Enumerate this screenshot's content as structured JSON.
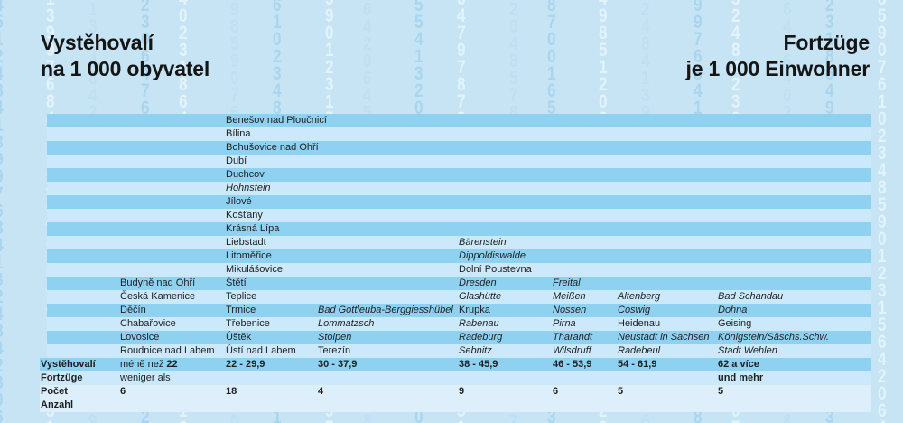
{
  "titles": {
    "czech_line1": "Vystěhovalí",
    "czech_line2": "na 1 000 obyvatel",
    "german_line1": "Fortzüge",
    "german_line2": "je 1 000 Einwohner"
  },
  "colors": {
    "background": "#c7e4f4",
    "band_dark": "#8ed1f1",
    "band_light": "#cbe9fa",
    "band_pale": "#dceffb",
    "text": "#1f1f1f",
    "digit_dark": "#a9d6ee",
    "digit_light": "#e2f3fc",
    "digit_mid": "#bfe0f2"
  },
  "background": {
    "digits": "45124841399768413248423064764023186498590761023485901231564206455413206479787320485787001654985120655476910234859012315642"
  },
  "table": {
    "rows": [
      {
        "shade": "dark",
        "cells": [
          {
            "col": 3,
            "text": "Benešov nad Ploučnicí"
          }
        ]
      },
      {
        "shade": "light",
        "cells": [
          {
            "col": 3,
            "text": "Bílina"
          }
        ]
      },
      {
        "shade": "dark",
        "cells": [
          {
            "col": 3,
            "text": "Bohušovice nad Ohří"
          }
        ]
      },
      {
        "shade": "light",
        "cells": [
          {
            "col": 3,
            "text": "Dubí"
          }
        ]
      },
      {
        "shade": "dark",
        "cells": [
          {
            "col": 3,
            "text": "Duchcov"
          }
        ]
      },
      {
        "shade": "light",
        "cells": [
          {
            "col": 3,
            "text": "Hohnstein",
            "italic": true
          }
        ]
      },
      {
        "shade": "dark",
        "cells": [
          {
            "col": 3,
            "text": "Jílové"
          }
        ]
      },
      {
        "shade": "light",
        "cells": [
          {
            "col": 3,
            "text": "Košťany"
          }
        ]
      },
      {
        "shade": "dark",
        "cells": [
          {
            "col": 3,
            "text": "Krásná Lípa"
          }
        ]
      },
      {
        "shade": "light",
        "cells": [
          {
            "col": 3,
            "text": "Liebstadt"
          },
          {
            "col": 5,
            "text": "Bärenstein",
            "italic": true
          }
        ]
      },
      {
        "shade": "dark",
        "cells": [
          {
            "col": 3,
            "text": "Litoměřice"
          },
          {
            "col": 5,
            "text": "Dippoldiswalde",
            "italic": true
          }
        ]
      },
      {
        "shade": "light",
        "cells": [
          {
            "col": 3,
            "text": "Mikulášovice"
          },
          {
            "col": 5,
            "text": "Dolní Poustevna"
          }
        ]
      },
      {
        "shade": "dark",
        "cells": [
          {
            "col": 2,
            "text": "Budyně nad Ohří"
          },
          {
            "col": 3,
            "text": "Štětí"
          },
          {
            "col": 5,
            "text": "Dresden",
            "italic": true
          },
          {
            "col": 6,
            "text": "Freital",
            "italic": true
          }
        ]
      },
      {
        "shade": "light",
        "cells": [
          {
            "col": 2,
            "text": "Česká Kamenice"
          },
          {
            "col": 3,
            "text": "Teplice"
          },
          {
            "col": 5,
            "text": "Glashütte",
            "italic": true
          },
          {
            "col": 6,
            "text": "Meißen",
            "italic": true
          },
          {
            "col": 7,
            "text": "Altenberg",
            "italic": true
          },
          {
            "col": 8,
            "text": "Bad Schandau",
            "italic": true
          }
        ]
      },
      {
        "shade": "dark",
        "cells": [
          {
            "col": 2,
            "text": "Děčín"
          },
          {
            "col": 3,
            "text": "Trmice"
          },
          {
            "col": 4,
            "text": "Bad Gottleuba-Berggiesshübel",
            "italic": true
          },
          {
            "col": 5,
            "text": "Krupka"
          },
          {
            "col": 6,
            "text": "Nossen",
            "italic": true
          },
          {
            "col": 7,
            "text": "Coswig",
            "italic": true
          },
          {
            "col": 8,
            "text": "Dohna",
            "italic": true
          }
        ]
      },
      {
        "shade": "light",
        "cells": [
          {
            "col": 2,
            "text": "Chabařovice"
          },
          {
            "col": 3,
            "text": "Třebenice"
          },
          {
            "col": 4,
            "text": "Lommatzsch",
            "italic": true
          },
          {
            "col": 5,
            "text": "Rabenau",
            "italic": true
          },
          {
            "col": 6,
            "text": "Pirna",
            "italic": true
          },
          {
            "col": 7,
            "text": "Heidenau"
          },
          {
            "col": 8,
            "text": "Geising"
          }
        ]
      },
      {
        "shade": "dark",
        "cells": [
          {
            "col": 2,
            "text": "Lovosice"
          },
          {
            "col": 3,
            "text": "Úštěk"
          },
          {
            "col": 4,
            "text": "Stolpen",
            "italic": true
          },
          {
            "col": 5,
            "text": "Radeburg",
            "italic": true
          },
          {
            "col": 6,
            "text": "Tharandt",
            "italic": true
          },
          {
            "col": 7,
            "text": "Neustadt in Sachsen",
            "italic": true
          },
          {
            "col": 8,
            "text": "Königstein/Säschs.Schw.",
            "italic": true
          }
        ]
      },
      {
        "shade": "light",
        "cells": [
          {
            "col": 2,
            "text": "Roudnice nad Labem"
          },
          {
            "col": 3,
            "text": "Ústí nad Labem"
          },
          {
            "col": 4,
            "text": "Terezín"
          },
          {
            "col": 5,
            "text": "Sebnitz",
            "italic": true
          },
          {
            "col": 6,
            "text": "Wilsdruff",
            "italic": true
          },
          {
            "col": 7,
            "text": "Radebeul",
            "italic": true
          },
          {
            "col": 8,
            "text": "Stadt Wehlen",
            "italic": true
          }
        ]
      },
      {
        "shade": "dark",
        "wide": true,
        "cells": [
          {
            "col": 1,
            "text": "Vystěhovalí",
            "bold": true
          },
          {
            "col": 2,
            "parts": [
              {
                "text": "méně než "
              },
              {
                "text": "22",
                "bold": true
              }
            ]
          },
          {
            "col": 3,
            "text": "22 - 29,9",
            "bold": true
          },
          {
            "col": 4,
            "text": "30 - 37,9",
            "bold": true
          },
          {
            "col": 5,
            "text": "38 - 45,9",
            "bold": true
          },
          {
            "col": 6,
            "text": "46 - 53,9",
            "bold": true
          },
          {
            "col": 7,
            "text": "54 - 61,9",
            "bold": true
          },
          {
            "col": 8,
            "text": "62 a více",
            "bold": true
          }
        ]
      },
      {
        "shade": "light",
        "wide": true,
        "cells": [
          {
            "col": 1,
            "text": "Fortzüge",
            "bold": true
          },
          {
            "col": 2,
            "text": "weniger als"
          },
          {
            "col": 8,
            "text": "und mehr",
            "bold": true
          }
        ]
      },
      {
        "shade": "pale",
        "wide": true,
        "cells": [
          {
            "col": 1,
            "text": "Počet",
            "bold": true
          },
          {
            "col": 2,
            "text": "6",
            "bold": true
          },
          {
            "col": 3,
            "text": "18",
            "bold": true
          },
          {
            "col": 4,
            "text": "4",
            "bold": true
          },
          {
            "col": 5,
            "text": "9",
            "bold": true
          },
          {
            "col": 6,
            "text": "6",
            "bold": true
          },
          {
            "col": 7,
            "text": "5",
            "bold": true
          },
          {
            "col": 8,
            "text": "5",
            "bold": true
          }
        ]
      },
      {
        "shade": "pale",
        "wide": true,
        "cells": [
          {
            "col": 1,
            "text": "Anzahl",
            "bold": true
          }
        ]
      }
    ]
  },
  "chart_data": {
    "type": "table",
    "title": "Vystěhovalí na 1 000 obyvatel / Fortzüge je 1 000 Einwohner",
    "row_labels": {
      "range_czech": "Vystěhovalí",
      "range_german": "Fortzüge",
      "count_czech": "Počet",
      "count_german": "Anzahl"
    },
    "classes": [
      {
        "range": "méně než 22 / weniger als 22",
        "count": 6,
        "cities": [
          "Budyně nad Ohří",
          "Česká Kamenice",
          "Děčín",
          "Chabařovice",
          "Lovosice",
          "Roudnice nad Labem"
        ]
      },
      {
        "range": "22 - 29,9",
        "count": 18,
        "cities": [
          "Benešov nad Ploučnicí",
          "Bílina",
          "Bohušovice nad Ohří",
          "Dubí",
          "Duchcov",
          "Hohnstein",
          "Jílové",
          "Košťany",
          "Krásná Lípa",
          "Liebstadt",
          "Litoměřice",
          "Mikulášovice",
          "Štětí",
          "Teplice",
          "Trmice",
          "Třebenice",
          "Úštěk",
          "Ústí nad Labem"
        ]
      },
      {
        "range": "30 - 37,9",
        "count": 4,
        "cities": [
          "Bad Gottleuba-Berggiesshübel",
          "Lommatzsch",
          "Stolpen",
          "Terezín"
        ]
      },
      {
        "range": "38 - 45,9",
        "count": 9,
        "cities": [
          "Bärenstein",
          "Dippoldiswalde",
          "Dolní Poustevna",
          "Dresden",
          "Glashütte",
          "Krupka",
          "Rabenau",
          "Radeburg",
          "Sebnitz"
        ]
      },
      {
        "range": "46 - 53,9",
        "count": 6,
        "cities": [
          "Freital",
          "Meißen",
          "Nossen",
          "Pirna",
          "Tharandt",
          "Wilsdruff"
        ]
      },
      {
        "range": "54 - 61,9",
        "count": 5,
        "cities": [
          "Altenberg",
          "Coswig",
          "Heidenau",
          "Neustadt in Sachsen",
          "Radebeul"
        ]
      },
      {
        "range": "62 a více / und mehr",
        "count": 5,
        "cities": [
          "Bad Schandau",
          "Dohna",
          "Geising",
          "Königstein/Säschs.Schw.",
          "Stadt Wehlen"
        ]
      }
    ]
  }
}
